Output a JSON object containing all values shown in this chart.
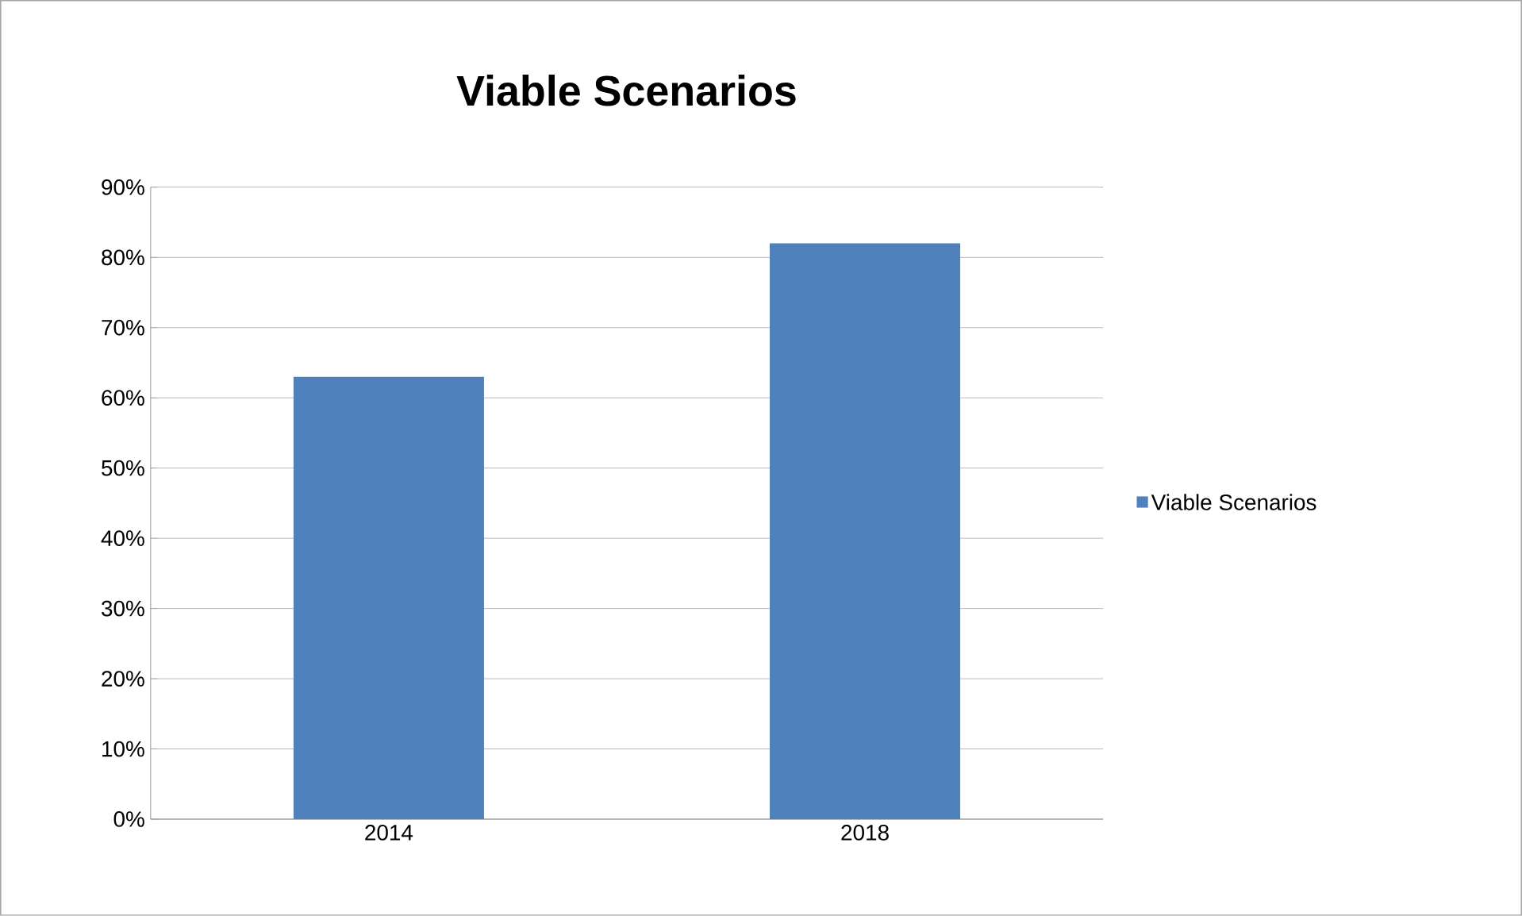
{
  "chart_data": {
    "type": "bar",
    "title": "Viable Scenarios",
    "categories": [
      "2014",
      "2018"
    ],
    "series": [
      {
        "name": "Viable Scenarios",
        "color": "#4f81bd",
        "values": [
          63,
          82
        ]
      }
    ],
    "ylim": [
      0,
      90
    ],
    "yticks": [
      {
        "value": 0,
        "label": "0%"
      },
      {
        "value": 10,
        "label": "10%"
      },
      {
        "value": 20,
        "label": "20%"
      },
      {
        "value": 30,
        "label": "30%"
      },
      {
        "value": 40,
        "label": "40%"
      },
      {
        "value": 50,
        "label": "50%"
      },
      {
        "value": 60,
        "label": "60%"
      },
      {
        "value": 70,
        "label": "70%"
      },
      {
        "value": 80,
        "label": "80%"
      },
      {
        "value": 90,
        "label": "90%"
      }
    ],
    "grid": "y",
    "legend": "right"
  }
}
